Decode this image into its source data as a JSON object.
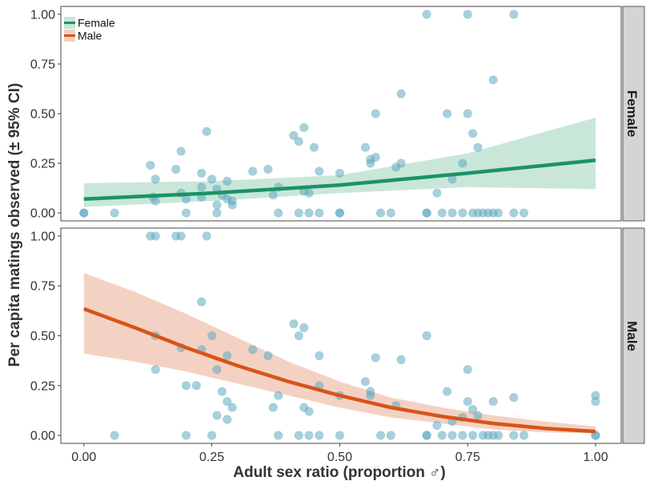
{
  "chart_data": {
    "type": "scatter",
    "xlabel": "Adult sex ratio (proportion ♂)",
    "ylabel": "Per capita matings observed (± 95% CI)",
    "xlim": [
      -0.045,
      1.05
    ],
    "ylim": [
      -0.04,
      1.04
    ],
    "x_ticks": [
      "0.00",
      "0.25",
      "0.50",
      "0.75",
      "1.00"
    ],
    "y_ticks": [
      "0.00",
      "0.25",
      "0.50",
      "0.75",
      "1.00"
    ],
    "grid": false,
    "legend": {
      "placement": "top-left",
      "entries": [
        {
          "name": "Female",
          "color": "#1b9268",
          "ribbon_color": "#c6e6d6"
        },
        {
          "name": "Male",
          "color": "#d95319",
          "ribbon_color": "#f3d0c0"
        }
      ]
    },
    "point_color": "#5fa9c0",
    "panels": [
      {
        "name": "Female",
        "line_color": "#1b9268",
        "ribbon_color": "#c6e6d6",
        "fit": [
          {
            "x": 0.0,
            "y": 0.07,
            "lo": 0.03,
            "hi": 0.15
          },
          {
            "x": 0.25,
            "y": 0.1,
            "lo": 0.06,
            "hi": 0.16
          },
          {
            "x": 0.5,
            "y": 0.14,
            "lo": 0.1,
            "hi": 0.19
          },
          {
            "x": 0.75,
            "y": 0.2,
            "lo": 0.13,
            "hi": 0.3
          },
          {
            "x": 1.0,
            "y": 0.265,
            "lo": 0.12,
            "hi": 0.48
          }
        ],
        "points": [
          [
            0.0,
            0.0
          ],
          [
            0.0,
            0.0
          ],
          [
            0.06,
            0.0
          ],
          [
            0.13,
            0.24
          ],
          [
            0.14,
            0.17
          ],
          [
            0.135,
            0.08
          ],
          [
            0.14,
            0.06
          ],
          [
            0.18,
            0.22
          ],
          [
            0.19,
            0.31
          ],
          [
            0.19,
            0.1
          ],
          [
            0.2,
            0.07
          ],
          [
            0.2,
            0.0
          ],
          [
            0.23,
            0.2
          ],
          [
            0.24,
            0.41
          ],
          [
            0.23,
            0.13
          ],
          [
            0.23,
            0.08
          ],
          [
            0.25,
            0.17
          ],
          [
            0.26,
            0.12
          ],
          [
            0.27,
            0.09
          ],
          [
            0.26,
            0.04
          ],
          [
            0.26,
            0.0
          ],
          [
            0.28,
            0.16
          ],
          [
            0.28,
            0.07
          ],
          [
            0.29,
            0.06
          ],
          [
            0.29,
            0.04
          ],
          [
            0.33,
            0.21
          ],
          [
            0.36,
            0.22
          ],
          [
            0.37,
            0.09
          ],
          [
            0.38,
            0.13
          ],
          [
            0.38,
            0.0
          ],
          [
            0.41,
            0.39
          ],
          [
            0.42,
            0.36
          ],
          [
            0.43,
            0.43
          ],
          [
            0.43,
            0.11
          ],
          [
            0.44,
            0.1
          ],
          [
            0.42,
            0.0
          ],
          [
            0.44,
            0.0
          ],
          [
            0.45,
            0.33
          ],
          [
            0.46,
            0.21
          ],
          [
            0.46,
            0.0
          ],
          [
            0.5,
            0.2
          ],
          [
            0.5,
            0.0
          ],
          [
            0.5,
            0.0
          ],
          [
            0.55,
            0.33
          ],
          [
            0.56,
            0.25
          ],
          [
            0.56,
            0.27
          ],
          [
            0.57,
            0.28
          ],
          [
            0.57,
            0.5
          ],
          [
            0.58,
            0.0
          ],
          [
            0.6,
            0.0
          ],
          [
            0.61,
            0.23
          ],
          [
            0.62,
            0.25
          ],
          [
            0.62,
            0.6
          ],
          [
            0.67,
            1.0
          ],
          [
            0.67,
            0.0
          ],
          [
            0.67,
            0.0
          ],
          [
            0.69,
            0.1
          ],
          [
            0.7,
            0.0
          ],
          [
            0.71,
            0.5
          ],
          [
            0.72,
            0.17
          ],
          [
            0.72,
            0.0
          ],
          [
            0.74,
            0.25
          ],
          [
            0.74,
            0.0
          ],
          [
            0.75,
            1.0
          ],
          [
            0.75,
            0.5
          ],
          [
            0.76,
            0.4
          ],
          [
            0.76,
            0.0
          ],
          [
            0.77,
            0.33
          ],
          [
            0.77,
            0.0
          ],
          [
            0.78,
            0.0
          ],
          [
            0.79,
            0.0
          ],
          [
            0.8,
            0.67
          ],
          [
            0.8,
            0.0
          ],
          [
            0.81,
            0.0
          ],
          [
            0.84,
            1.0
          ],
          [
            0.84,
            0.0
          ],
          [
            0.86,
            0.0
          ]
        ]
      },
      {
        "name": "Male",
        "line_color": "#d95319",
        "ribbon_color": "#f3d0c0",
        "fit": [
          {
            "x": 0.0,
            "y": 0.635,
            "lo": 0.41,
            "hi": 0.815
          },
          {
            "x": 0.1,
            "y": 0.54,
            "lo": 0.37,
            "hi": 0.72
          },
          {
            "x": 0.2,
            "y": 0.44,
            "lo": 0.32,
            "hi": 0.61
          },
          {
            "x": 0.3,
            "y": 0.35,
            "lo": 0.26,
            "hi": 0.49
          },
          {
            "x": 0.4,
            "y": 0.27,
            "lo": 0.2,
            "hi": 0.37
          },
          {
            "x": 0.5,
            "y": 0.2,
            "lo": 0.14,
            "hi": 0.27
          },
          {
            "x": 0.6,
            "y": 0.14,
            "lo": 0.09,
            "hi": 0.19
          },
          {
            "x": 0.7,
            "y": 0.095,
            "lo": 0.06,
            "hi": 0.14
          },
          {
            "x": 0.8,
            "y": 0.06,
            "lo": 0.03,
            "hi": 0.1
          },
          {
            "x": 0.9,
            "y": 0.035,
            "lo": 0.015,
            "hi": 0.07
          },
          {
            "x": 1.0,
            "y": 0.02,
            "lo": 0.01,
            "hi": 0.045
          }
        ],
        "points": [
          [
            0.06,
            0.0
          ],
          [
            0.13,
            1.0
          ],
          [
            0.14,
            1.0
          ],
          [
            0.18,
            1.0
          ],
          [
            0.19,
            1.0
          ],
          [
            0.24,
            1.0
          ],
          [
            0.14,
            0.5
          ],
          [
            0.14,
            0.33
          ],
          [
            0.19,
            0.44
          ],
          [
            0.2,
            0.25
          ],
          [
            0.2,
            0.0
          ],
          [
            0.22,
            0.25
          ],
          [
            0.23,
            0.67
          ],
          [
            0.23,
            0.43
          ],
          [
            0.25,
            0.5
          ],
          [
            0.26,
            0.33
          ],
          [
            0.27,
            0.22
          ],
          [
            0.26,
            0.1
          ],
          [
            0.25,
            0.0
          ],
          [
            0.28,
            0.4
          ],
          [
            0.28,
            0.17
          ],
          [
            0.29,
            0.14
          ],
          [
            0.28,
            0.08
          ],
          [
            0.33,
            0.43
          ],
          [
            0.36,
            0.4
          ],
          [
            0.37,
            0.14
          ],
          [
            0.38,
            0.2
          ],
          [
            0.38,
            0.0
          ],
          [
            0.41,
            0.56
          ],
          [
            0.42,
            0.5
          ],
          [
            0.43,
            0.54
          ],
          [
            0.43,
            0.14
          ],
          [
            0.44,
            0.12
          ],
          [
            0.42,
            0.0
          ],
          [
            0.44,
            0.0
          ],
          [
            0.46,
            0.4
          ],
          [
            0.46,
            0.25
          ],
          [
            0.46,
            0.0
          ],
          [
            0.5,
            0.2
          ],
          [
            0.5,
            0.0
          ],
          [
            0.55,
            0.27
          ],
          [
            0.56,
            0.2
          ],
          [
            0.56,
            0.22
          ],
          [
            0.57,
            0.39
          ],
          [
            0.58,
            0.0
          ],
          [
            0.6,
            0.0
          ],
          [
            0.61,
            0.15
          ],
          [
            0.62,
            0.38
          ],
          [
            0.67,
            0.5
          ],
          [
            0.67,
            0.0
          ],
          [
            0.67,
            0.0
          ],
          [
            0.69,
            0.05
          ],
          [
            0.7,
            0.0
          ],
          [
            0.71,
            0.22
          ],
          [
            0.72,
            0.07
          ],
          [
            0.72,
            0.0
          ],
          [
            0.74,
            0.09
          ],
          [
            0.74,
            0.0
          ],
          [
            0.75,
            0.33
          ],
          [
            0.75,
            0.17
          ],
          [
            0.76,
            0.13
          ],
          [
            0.76,
            0.0
          ],
          [
            0.77,
            0.1
          ],
          [
            0.78,
            0.0
          ],
          [
            0.79,
            0.0
          ],
          [
            0.8,
            0.17
          ],
          [
            0.8,
            0.0
          ],
          [
            0.81,
            0.0
          ],
          [
            0.84,
            0.19
          ],
          [
            0.84,
            0.0
          ],
          [
            0.86,
            0.0
          ],
          [
            1.0,
            0.2
          ],
          [
            1.0,
            0.17
          ],
          [
            1.0,
            0.0
          ],
          [
            1.0,
            0.0
          ]
        ]
      }
    ]
  }
}
